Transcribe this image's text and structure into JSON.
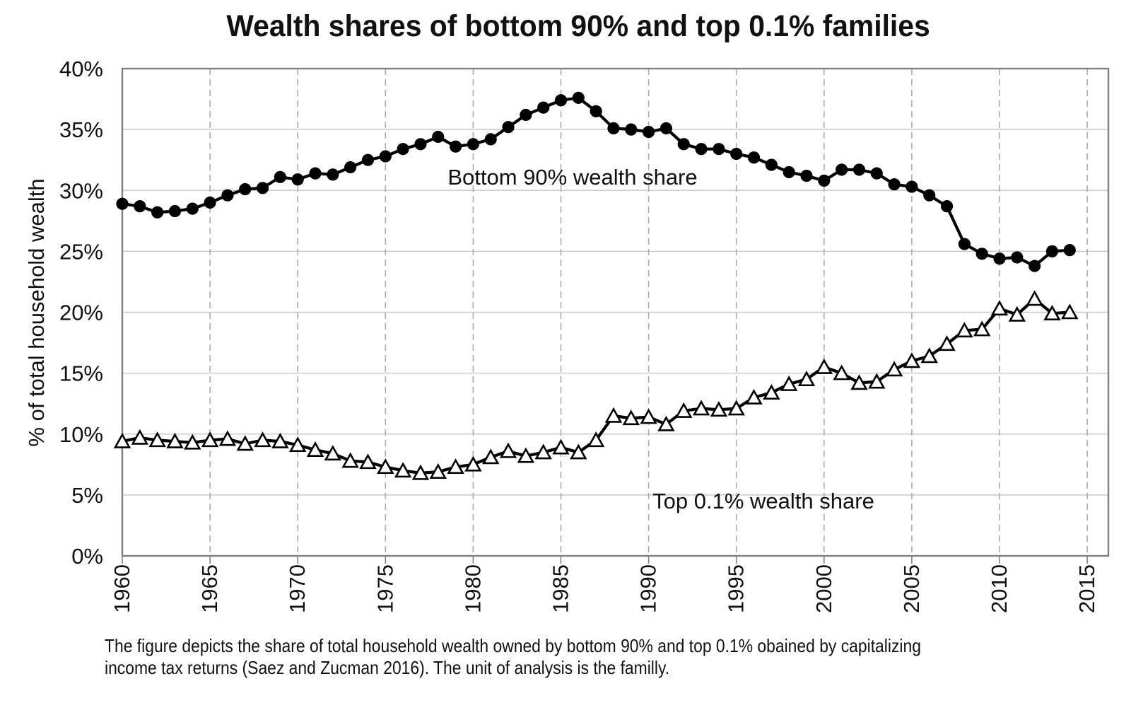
{
  "chart_data": {
    "type": "line",
    "title": "Wealth shares of bottom 90% and top 0.1% families",
    "ylabel": "% of total household wealth",
    "xlabel": "",
    "ylim": [
      0,
      40
    ],
    "xlim": [
      1960,
      2016
    ],
    "y_ticks": [
      0,
      5,
      10,
      15,
      20,
      25,
      30,
      35,
      40
    ],
    "y_tick_suffix": "%",
    "x_ticks": [
      1960,
      1965,
      1970,
      1975,
      1980,
      1985,
      1990,
      1995,
      2000,
      2005,
      2010,
      2015
    ],
    "grid": {
      "horizontal": "solid",
      "vertical": "dashed"
    },
    "x": [
      1960,
      1961,
      1962,
      1963,
      1964,
      1965,
      1966,
      1967,
      1968,
      1969,
      1970,
      1971,
      1972,
      1973,
      1974,
      1975,
      1976,
      1977,
      1978,
      1979,
      1980,
      1981,
      1982,
      1983,
      1984,
      1985,
      1986,
      1987,
      1988,
      1989,
      1990,
      1991,
      1992,
      1993,
      1994,
      1995,
      1996,
      1997,
      1998,
      1999,
      2000,
      2001,
      2002,
      2003,
      2004,
      2005,
      2006,
      2007,
      2008,
      2009,
      2010,
      2011,
      2012,
      2013,
      2014
    ],
    "series": [
      {
        "name": "Bottom 90% wealth share",
        "marker": "filled-circle",
        "values": [
          28.9,
          28.7,
          28.2,
          28.3,
          28.5,
          29.0,
          29.6,
          30.1,
          30.2,
          31.1,
          30.9,
          31.4,
          31.3,
          31.9,
          32.5,
          32.8,
          33.4,
          33.8,
          34.4,
          33.6,
          33.8,
          34.2,
          35.2,
          36.2,
          36.8,
          37.4,
          37.6,
          36.5,
          35.1,
          35.0,
          34.8,
          35.1,
          33.8,
          33.4,
          33.4,
          33.0,
          32.7,
          32.1,
          31.5,
          31.2,
          30.8,
          31.7,
          31.7,
          31.4,
          30.5,
          30.3,
          29.6,
          28.7,
          25.6,
          24.8,
          24.4,
          24.5,
          23.8,
          25.0,
          25.1
        ]
      },
      {
        "name": "Top 0.1% wealth share",
        "marker": "open-triangle",
        "values": [
          9.4,
          9.7,
          9.5,
          9.4,
          9.3,
          9.5,
          9.6,
          9.2,
          9.5,
          9.4,
          9.1,
          8.7,
          8.4,
          7.8,
          7.7,
          7.3,
          7.0,
          6.8,
          6.9,
          7.3,
          7.5,
          8.1,
          8.6,
          8.2,
          8.5,
          8.9,
          8.5,
          9.5,
          11.5,
          11.3,
          11.4,
          10.8,
          11.9,
          12.1,
          12.0,
          12.1,
          13.0,
          13.4,
          14.1,
          14.5,
          15.5,
          15.0,
          14.2,
          14.3,
          15.3,
          16.0,
          16.4,
          17.4,
          18.5,
          18.6,
          20.3,
          19.8,
          21.1,
          19.9,
          20.0
        ]
      }
    ],
    "annotations": [
      {
        "text": "Bottom 90% wealth share",
        "series": 0
      },
      {
        "text": "Top 0.1% wealth share",
        "series": 1
      }
    ],
    "legend_position": "inline-labels"
  },
  "caption": {
    "line1": "The figure depicts the share of total household wealth owned by bottom 90% and top 0.1% obained by capitalizing",
    "line2": "income tax returns (Saez and Zucman 2016). The unit of analysis is the familly."
  },
  "colors": {
    "series_line": "#000000",
    "marker_fill_circle": "#000000",
    "marker_fill_triangle": "#ffffff",
    "grid_solid": "#c9c9c9",
    "grid_dashed": "#ababab",
    "frame": "#808080",
    "text": "#111111"
  }
}
